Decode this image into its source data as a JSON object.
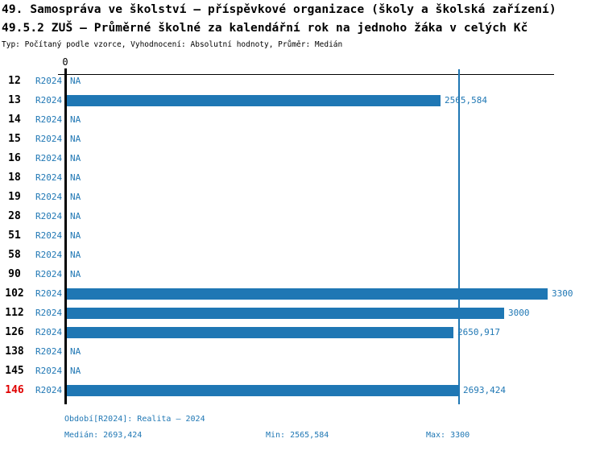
{
  "header": {
    "title1": "49. Samospráva ve školství – příspěvkové organizace (školy a školská zařízení)",
    "title2": "49.5.2 ZUŠ – Průměrné školné za kalendářní rok na jednoho žáka v celých Kč",
    "subtitle": "Typ: Počítaný podle vzorce, Vyhodnocení: Absolutní hodnoty, Průměr: Medián"
  },
  "chart_data": {
    "type": "bar",
    "orientation": "horizontal",
    "title": "49.5.2 ZUŠ – Průměrné školné za kalendářní rok na jednoho žáka v celých Kč",
    "xlabel": "",
    "ylabel": "",
    "xlim": [
      0,
      3300
    ],
    "axis_zero_label": "0",
    "grid": false,
    "legend": "none",
    "median_value": 2693.424,
    "median_line": true,
    "categories": [
      "12",
      "13",
      "14",
      "15",
      "16",
      "18",
      "19",
      "28",
      "51",
      "58",
      "90",
      "102",
      "112",
      "126",
      "138",
      "145",
      "146"
    ],
    "rows": [
      {
        "id": "12",
        "period": "R2024",
        "value": null,
        "label": "NA",
        "highlight": false
      },
      {
        "id": "13",
        "period": "R2024",
        "value": 2565.584,
        "label": "2565,584",
        "highlight": false
      },
      {
        "id": "14",
        "period": "R2024",
        "value": null,
        "label": "NA",
        "highlight": false
      },
      {
        "id": "15",
        "period": "R2024",
        "value": null,
        "label": "NA",
        "highlight": false
      },
      {
        "id": "16",
        "period": "R2024",
        "value": null,
        "label": "NA",
        "highlight": false
      },
      {
        "id": "18",
        "period": "R2024",
        "value": null,
        "label": "NA",
        "highlight": false
      },
      {
        "id": "19",
        "period": "R2024",
        "value": null,
        "label": "NA",
        "highlight": false
      },
      {
        "id": "28",
        "period": "R2024",
        "value": null,
        "label": "NA",
        "highlight": false
      },
      {
        "id": "51",
        "period": "R2024",
        "value": null,
        "label": "NA",
        "highlight": false
      },
      {
        "id": "58",
        "period": "R2024",
        "value": null,
        "label": "NA",
        "highlight": false
      },
      {
        "id": "90",
        "period": "R2024",
        "value": null,
        "label": "NA",
        "highlight": false
      },
      {
        "id": "102",
        "period": "R2024",
        "value": 3300,
        "label": "3300",
        "highlight": false
      },
      {
        "id": "112",
        "period": "R2024",
        "value": 3000,
        "label": "3000",
        "highlight": false
      },
      {
        "id": "126",
        "period": "R2024",
        "value": 2650.917,
        "label": "2650,917",
        "highlight": false
      },
      {
        "id": "138",
        "period": "R2024",
        "value": null,
        "label": "NA",
        "highlight": false
      },
      {
        "id": "145",
        "period": "R2024",
        "value": null,
        "label": "NA",
        "highlight": false
      },
      {
        "id": "146",
        "period": "R2024",
        "value": 2693.424,
        "label": "2693,424",
        "highlight": true
      }
    ]
  },
  "footer": {
    "period": "Období[R2024]: Realita – 2024",
    "median": "Medián: 2693,424",
    "min": "Min: 2565,584",
    "max": "Max: 3300"
  },
  "colors": {
    "bar": "#1f77b4",
    "value_text": "#1f77b4",
    "median_line": "#1f77b4",
    "highlight_row": "#e00000",
    "axis": "#000000"
  }
}
